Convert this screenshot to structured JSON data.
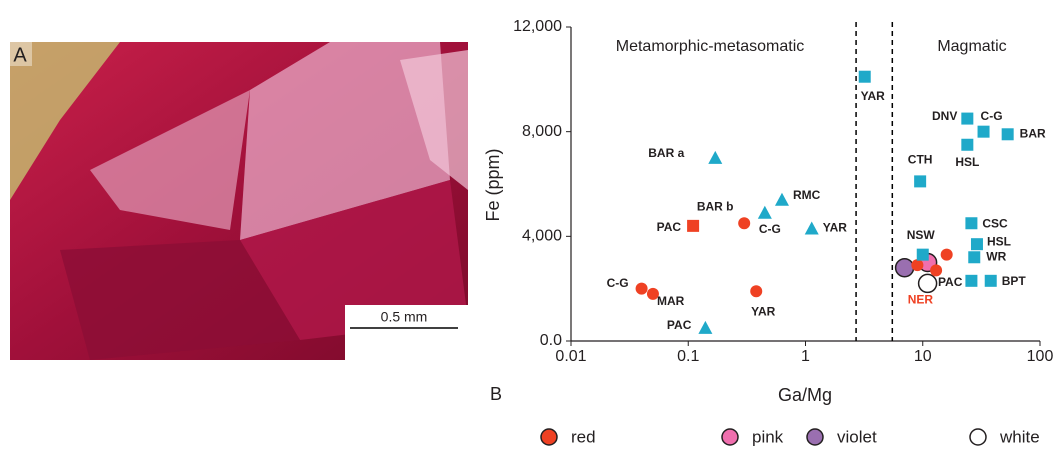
{
  "panel_a": {
    "label": "A",
    "scale_bar": "0.5 mm"
  },
  "chart_data": {
    "type": "scatter",
    "panel_label": "B",
    "x_label": "Ga/Mg",
    "y_label": "Fe (ppm)",
    "x_scale": "log",
    "xlim": [
      0.01,
      100
    ],
    "xticks": [
      0.01,
      0.1,
      1,
      10,
      100
    ],
    "ylim": [
      0,
      12000
    ],
    "yticks": [
      {
        "value": 0,
        "label": "0.0"
      },
      {
        "value": 4000,
        "label": "4,000"
      },
      {
        "value": 8000,
        "label": "8,000"
      },
      {
        "value": 12000,
        "label": "12,000"
      }
    ],
    "regions": [
      "Metamorphic-metasomatic",
      "Magmatic"
    ],
    "boundaries": [
      2.7,
      5.5
    ],
    "series": [
      {
        "name": "red",
        "color": "#ef4123",
        "marker": "circle",
        "x": [
          0.04,
          0.05,
          0.38,
          0.3
        ],
        "values": [
          2000,
          1800,
          1900,
          4500
        ],
        "labels": [
          "C-G",
          "MAR",
          "YAR",
          "BAR b"
        ]
      },
      {
        "name": "pink",
        "color": "#f06fae",
        "marker": "circle",
        "x": [
          11
        ],
        "values": [
          3000
        ]
      },
      {
        "name": "violet",
        "color": "#9a6fb0",
        "marker": "circle",
        "x": [
          7
        ],
        "values": [
          2800
        ]
      },
      {
        "name": "white",
        "color": "#ffffff",
        "marker": "circle",
        "x": [
          11
        ],
        "values": [
          2200
        ]
      },
      {
        "color": "#ef4123",
        "marker": "circle",
        "label_color": "#ef4123",
        "x": [
          9,
          13,
          16
        ],
        "values": [
          2900,
          2700,
          3300
        ],
        "labels": [
          "NER",
          null,
          null
        ]
      },
      {
        "color": "#ef4123",
        "marker": "square",
        "x": [
          0.11
        ],
        "values": [
          4400
        ],
        "labels": [
          "PAC"
        ]
      },
      {
        "color": "#1fa9c9",
        "marker": "triangle",
        "x": [
          0.17,
          0.45,
          0.63,
          1.13,
          0.14
        ],
        "values": [
          7000,
          4900,
          5400,
          4300,
          500
        ],
        "labels": [
          "BAR a",
          "C-G",
          "RMC",
          "YAR",
          "PAC"
        ]
      },
      {
        "color": "#1fa9c9",
        "marker": "square",
        "x": [
          3.2,
          10,
          24,
          33,
          53,
          24,
          9.5,
          26,
          29,
          27.5,
          26,
          38
        ],
        "values": [
          10100,
          3300,
          8500,
          8000,
          7900,
          7500,
          6100,
          4500,
          3700,
          3200,
          2300,
          2300
        ],
        "labels": [
          "YAR",
          "NSW",
          "DNV",
          "C-G",
          "BAR",
          "HSL",
          "CTH",
          "CSC",
          "HSL",
          "WR",
          "PAC",
          "BPT"
        ]
      }
    ]
  }
}
